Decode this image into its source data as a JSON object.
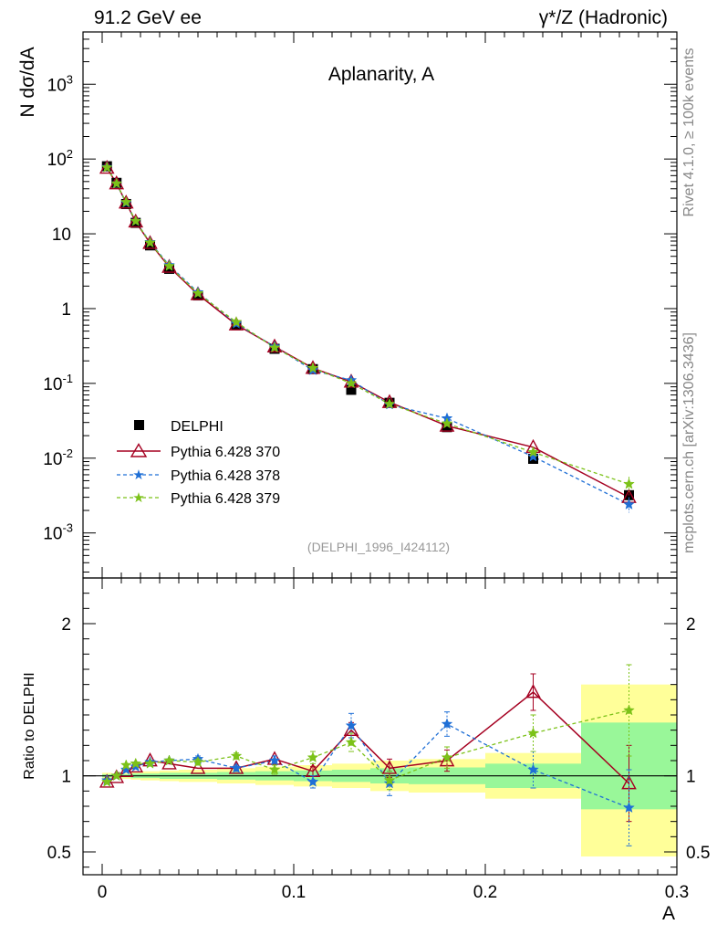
{
  "header": {
    "left": "91.2 GeV ee",
    "right": "γ*/Z (Hadronic)"
  },
  "side_labels": {
    "rivet": "Rivet 4.1.0, ≥ 100k events",
    "mcplots": "mcplots.cern.ch [arXiv:1306.3436]"
  },
  "chart_data": [
    {
      "type": "scatter",
      "title": "Aplanarity, A",
      "ylabel": "N  dσ/dA",
      "xlabel": "",
      "yscale": "log",
      "xlim": [
        -0.01,
        0.3
      ],
      "ylim": [
        0.00025,
        5000
      ],
      "annotation": "(DELPHI_1996_I424112)",
      "y_ticks": [
        {
          "value": 0.001,
          "mantissa": "10",
          "exp": "-3"
        },
        {
          "value": 0.01,
          "mantissa": "10",
          "exp": "-2"
        },
        {
          "value": 0.1,
          "mantissa": "10",
          "exp": "-1"
        },
        {
          "value": 1,
          "mantissa": "1",
          "exp": ""
        },
        {
          "value": 10,
          "mantissa": "10",
          "exp": ""
        },
        {
          "value": 100,
          "mantissa": "10",
          "exp": "2"
        },
        {
          "value": 1000,
          "mantissa": "10",
          "exp": "3"
        }
      ],
      "x": [
        0.0025,
        0.0075,
        0.0125,
        0.0175,
        0.025,
        0.035,
        0.05,
        0.07,
        0.09,
        0.11,
        0.13,
        0.15,
        0.18,
        0.225,
        0.275
      ],
      "series": [
        {
          "name": "DELPHI",
          "color": "#000000",
          "marker": "square",
          "values": [
            80,
            48,
            25,
            14,
            7.0,
            3.4,
            1.5,
            0.6,
            0.29,
            0.155,
            0.082,
            0.055,
            0.026,
            0.0098,
            0.0032
          ]
        },
        {
          "name": "Pythia 6.428 370",
          "color": "#a50021",
          "marker": "triangle",
          "line": "solid",
          "values": [
            76,
            47,
            26,
            14.5,
            7.5,
            3.6,
            1.55,
            0.61,
            0.31,
            0.16,
            0.105,
            0.056,
            0.027,
            0.014,
            0.003
          ]
        },
        {
          "name": "Pythia 6.428 378",
          "color": "#1f6fd6",
          "marker": "star",
          "line": "dashed",
          "values": [
            78,
            47,
            26,
            14.8,
            7.7,
            3.8,
            1.65,
            0.63,
            0.31,
            0.15,
            0.11,
            0.052,
            0.034,
            0.0105,
            0.0024
          ]
        },
        {
          "name": "Pythia 6.428 379",
          "color": "#7cc219",
          "marker": "star",
          "line": "dashed",
          "values": [
            77,
            47,
            26.5,
            14.8,
            7.6,
            3.7,
            1.6,
            0.66,
            0.3,
            0.16,
            0.1,
            0.053,
            0.029,
            0.012,
            0.0045
          ]
        }
      ]
    },
    {
      "type": "scatter",
      "title": "",
      "xlabel": "A",
      "ylabel": "Ratio to DELPHI",
      "yscale": "linear",
      "xlim": [
        -0.01,
        0.3
      ],
      "ylim": [
        0.35,
        2.3
      ],
      "x_ticks": [
        {
          "value": 0,
          "label": "0"
        },
        {
          "value": 0.1,
          "label": "0.1"
        },
        {
          "value": 0.2,
          "label": "0.2"
        },
        {
          "value": 0.3,
          "label": "0.3"
        }
      ],
      "y_ticks": [
        {
          "value": 0.5,
          "label": "0.5"
        },
        {
          "value": 1,
          "label": "1"
        },
        {
          "value": 2,
          "label": "2"
        }
      ],
      "bands": {
        "edges": [
          0,
          0.005,
          0.01,
          0.015,
          0.02,
          0.03,
          0.04,
          0.06,
          0.08,
          0.1,
          0.12,
          0.14,
          0.16,
          0.2,
          0.25,
          0.3
        ],
        "yellow_lo": [
          0.98,
          0.985,
          0.98,
          0.975,
          0.97,
          0.965,
          0.96,
          0.95,
          0.94,
          0.93,
          0.92,
          0.9,
          0.89,
          0.85,
          0.47
        ],
        "yellow_hi": [
          1.02,
          1.015,
          1.02,
          1.025,
          1.03,
          1.035,
          1.04,
          1.05,
          1.06,
          1.07,
          1.08,
          1.1,
          1.11,
          1.15,
          1.6
        ],
        "green_lo": [
          0.99,
          0.99,
          0.99,
          0.985,
          0.985,
          0.98,
          0.98,
          0.975,
          0.97,
          0.965,
          0.96,
          0.95,
          0.945,
          0.92,
          0.78
        ],
        "green_hi": [
          1.01,
          1.01,
          1.01,
          1.015,
          1.015,
          1.02,
          1.02,
          1.025,
          1.03,
          1.035,
          1.04,
          1.05,
          1.055,
          1.08,
          1.35
        ]
      },
      "x": [
        0.0025,
        0.0075,
        0.0125,
        0.0175,
        0.025,
        0.035,
        0.05,
        0.07,
        0.09,
        0.11,
        0.13,
        0.15,
        0.18,
        0.225,
        0.275
      ],
      "series": [
        {
          "name": "Pythia 6.428 370",
          "color": "#a50021",
          "marker": "triangle",
          "line": "solid",
          "values": [
            0.96,
            0.99,
            1.03,
            1.06,
            1.1,
            1.08,
            1.05,
            1.05,
            1.11,
            1.03,
            1.3,
            1.05,
            1.1,
            1.55,
            0.95
          ],
          "err": [
            0.01,
            0.01,
            0.01,
            0.01,
            0.01,
            0.01,
            0.01,
            0.02,
            0.02,
            0.03,
            0.05,
            0.06,
            0.07,
            0.12,
            0.25
          ]
        },
        {
          "name": "Pythia 6.428 378",
          "color": "#1f6fd6",
          "marker": "star",
          "line": "dashed",
          "values": [
            0.97,
            1.0,
            1.04,
            1.06,
            1.09,
            1.1,
            1.11,
            1.05,
            1.1,
            0.96,
            1.33,
            0.95,
            1.34,
            1.04,
            0.79
          ],
          "err": [
            0.01,
            0.01,
            0.01,
            0.01,
            0.01,
            0.01,
            0.02,
            0.02,
            0.03,
            0.04,
            0.08,
            0.08,
            0.08,
            0.12,
            0.25
          ]
        },
        {
          "name": "Pythia 6.428 379",
          "color": "#7cc219",
          "marker": "star",
          "line": "dashed",
          "values": [
            0.96,
            1.0,
            1.07,
            1.08,
            1.08,
            1.1,
            1.09,
            1.13,
            1.04,
            1.12,
            1.22,
            0.97,
            1.12,
            1.28,
            1.43
          ],
          "err": [
            0.01,
            0.01,
            0.01,
            0.01,
            0.01,
            0.01,
            0.02,
            0.02,
            0.03,
            0.04,
            0.06,
            0.06,
            0.07,
            0.12,
            0.3
          ]
        }
      ]
    }
  ]
}
